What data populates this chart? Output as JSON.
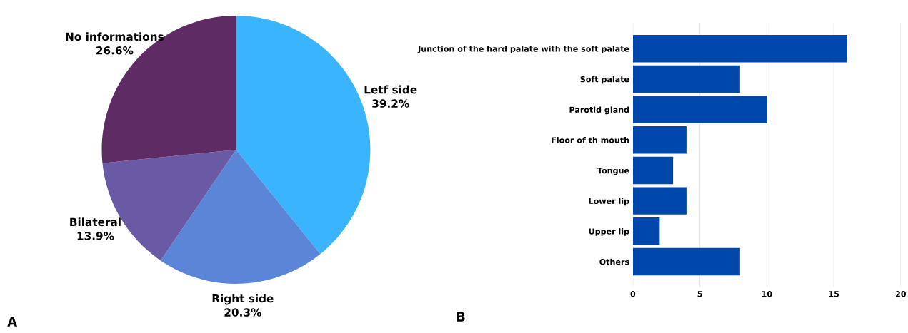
{
  "chart_data": [
    {
      "type": "pie",
      "categories": [
        "Letf side",
        "Right side",
        "Bilateral",
        "No informations"
      ],
      "values": [
        39.2,
        20.3,
        13.9,
        26.6
      ],
      "colors": [
        "#3bb4fe",
        "#5b86d7",
        "#6a5aa6",
        "#5e2b64"
      ],
      "value_labels": [
        "39.2%",
        "20.3%",
        "13.9%",
        "26.6%"
      ],
      "annotations": [
        "A"
      ]
    },
    {
      "type": "bar",
      "orientation": "horizontal",
      "categories": [
        "Junction of the hard palate with the soft palate",
        "Soft palate",
        "Parotid gland",
        "Floor of th mouth",
        "Tongue",
        "Lower lip",
        "Upper lip",
        "Others"
      ],
      "values": [
        16,
        8,
        10,
        4,
        3,
        4,
        2,
        8
      ],
      "color": "#0047ab",
      "xlim": [
        0,
        20
      ],
      "xticks": [
        0,
        5,
        10,
        15,
        20
      ],
      "grid": "x",
      "annotations": [
        "B"
      ]
    }
  ]
}
